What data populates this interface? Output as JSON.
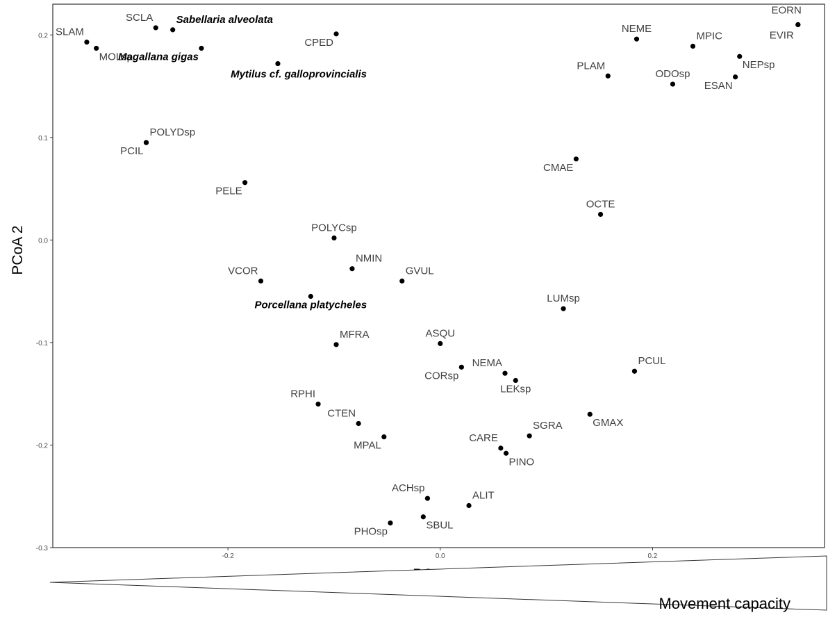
{
  "chart_data": {
    "type": "scatter",
    "xlabel": "PCoA 1",
    "ylabel": "PCoA 2",
    "xlim": [
      -0.365,
      0.362
    ],
    "ylim": [
      -0.3,
      0.23
    ],
    "x_ticks": [
      -0.2,
      0.0,
      0.2
    ],
    "x_tick_labels": [
      "-0.2",
      "0.0",
      "0.2"
    ],
    "y_ticks": [
      -0.3,
      -0.2,
      -0.1,
      0.0,
      0.1,
      0.2
    ],
    "y_tick_labels": [
      "-0.3",
      "-0.2",
      "-0.1",
      "0.0",
      "0.1",
      "0.2"
    ],
    "grid": false,
    "annotation": "Movement capacity",
    "points": [
      {
        "label": "SLAM",
        "x": -0.333,
        "y": 0.193,
        "anchor": "end",
        "pos": "above-left",
        "bold": false
      },
      {
        "label": "MOLsp",
        "x": -0.324,
        "y": 0.187,
        "anchor": "start",
        "pos": "below-right",
        "bold": false
      },
      {
        "label": "SCLA",
        "x": -0.268,
        "y": 0.207,
        "anchor": "end",
        "pos": "above-left",
        "bold": false
      },
      {
        "label": "Sabellaria alveolata",
        "x": -0.252,
        "y": 0.205,
        "anchor": "start",
        "pos": "above-right",
        "bold": true
      },
      {
        "label": "Magallana gigas",
        "x": -0.225,
        "y": 0.187,
        "anchor": "end",
        "pos": "below-left",
        "bold": true
      },
      {
        "label": "Mytilus cf. galloprovincialis",
        "x": -0.153,
        "y": 0.172,
        "anchor": "end",
        "pos": "below-right-bold",
        "bold": true
      },
      {
        "label": "CPED",
        "x": -0.098,
        "y": 0.201,
        "anchor": "end",
        "pos": "below-left",
        "bold": false
      },
      {
        "label": "POLYDsp",
        "x": -0.277,
        "y": 0.095,
        "anchor": "start",
        "pos": "above-right",
        "bold": false
      },
      {
        "label": "PCIL",
        "x": -0.277,
        "y": 0.095,
        "anchor": "end",
        "pos": "below-left",
        "bold": false
      },
      {
        "label": "PELE",
        "x": -0.184,
        "y": 0.056,
        "anchor": "end",
        "pos": "below-left",
        "bold": false
      },
      {
        "label": "POLYCsp",
        "x": -0.1,
        "y": 0.002,
        "anchor": "middle",
        "pos": "above",
        "bold": false
      },
      {
        "label": "NMIN",
        "x": -0.083,
        "y": -0.028,
        "anchor": "start",
        "pos": "above-right",
        "bold": false
      },
      {
        "label": "GVUL",
        "x": -0.036,
        "y": -0.04,
        "anchor": "start",
        "pos": "above-right",
        "bold": false
      },
      {
        "label": "VCOR",
        "x": -0.169,
        "y": -0.04,
        "anchor": "end",
        "pos": "above-left",
        "bold": false
      },
      {
        "label": "Porcellana platycheles",
        "x": -0.122,
        "y": -0.055,
        "anchor": "middle",
        "pos": "below",
        "bold": true
      },
      {
        "label": "MFRA",
        "x": -0.098,
        "y": -0.102,
        "anchor": "start",
        "pos": "above-right",
        "bold": false
      },
      {
        "label": "ASQU",
        "x": 0.0,
        "y": -0.101,
        "anchor": "middle",
        "pos": "above",
        "bold": false
      },
      {
        "label": "CORsp",
        "x": 0.02,
        "y": -0.124,
        "anchor": "end",
        "pos": "below-left",
        "bold": false
      },
      {
        "label": "NEMA",
        "x": 0.061,
        "y": -0.13,
        "anchor": "end",
        "pos": "above-left",
        "bold": false
      },
      {
        "label": "LEKsp",
        "x": 0.071,
        "y": -0.137,
        "anchor": "middle",
        "pos": "below",
        "bold": false
      },
      {
        "label": "RPHI",
        "x": -0.115,
        "y": -0.16,
        "anchor": "end",
        "pos": "above-left",
        "bold": false
      },
      {
        "label": "CTEN",
        "x": -0.077,
        "y": -0.179,
        "anchor": "end",
        "pos": "above-left",
        "bold": false
      },
      {
        "label": "MPAL",
        "x": -0.053,
        "y": -0.192,
        "anchor": "end",
        "pos": "below-left",
        "bold": false
      },
      {
        "label": "SGRA",
        "x": 0.084,
        "y": -0.191,
        "anchor": "start",
        "pos": "above-right",
        "bold": false
      },
      {
        "label": "CARE",
        "x": 0.057,
        "y": -0.203,
        "anchor": "end",
        "pos": "above-left",
        "bold": false
      },
      {
        "label": "PINO",
        "x": 0.062,
        "y": -0.208,
        "anchor": "start",
        "pos": "below-right",
        "bold": false
      },
      {
        "label": "GMAX",
        "x": 0.141,
        "y": -0.17,
        "anchor": "start",
        "pos": "below-right",
        "bold": false
      },
      {
        "label": "PCUL",
        "x": 0.183,
        "y": -0.128,
        "anchor": "start",
        "pos": "above-right",
        "bold": false
      },
      {
        "label": "LUMsp",
        "x": 0.116,
        "y": -0.067,
        "anchor": "middle",
        "pos": "above",
        "bold": false
      },
      {
        "label": "OCTE",
        "x": 0.151,
        "y": 0.025,
        "anchor": "middle",
        "pos": "above",
        "bold": false
      },
      {
        "label": "CMAE",
        "x": 0.128,
        "y": 0.079,
        "anchor": "end",
        "pos": "below-left",
        "bold": false
      },
      {
        "label": "PLAM",
        "x": 0.158,
        "y": 0.16,
        "anchor": "end",
        "pos": "above-left",
        "bold": false
      },
      {
        "label": "NEME",
        "x": 0.185,
        "y": 0.196,
        "anchor": "middle",
        "pos": "above",
        "bold": false
      },
      {
        "label": "MPIC",
        "x": 0.238,
        "y": 0.189,
        "anchor": "start",
        "pos": "above-right",
        "bold": false
      },
      {
        "label": "ODOsp",
        "x": 0.219,
        "y": 0.152,
        "anchor": "middle",
        "pos": "above",
        "bold": false
      },
      {
        "label": "NEPsp",
        "x": 0.282,
        "y": 0.179,
        "anchor": "start",
        "pos": "below-right",
        "bold": false
      },
      {
        "label": "ESAN",
        "x": 0.278,
        "y": 0.159,
        "anchor": "end",
        "pos": "below-left",
        "bold": false
      },
      {
        "label": "EORN",
        "x": 0.337,
        "y": 0.21,
        "anchor": "end",
        "pos": "above-left-far",
        "bold": false
      },
      {
        "label": "EVIR",
        "x": 0.337,
        "y": 0.21,
        "anchor": "end",
        "pos": "below-left-far",
        "bold": false
      },
      {
        "label": "ACHsp",
        "x": -0.012,
        "y": -0.252,
        "anchor": "end",
        "pos": "above-left",
        "bold": false
      },
      {
        "label": "ALIT",
        "x": 0.027,
        "y": -0.259,
        "anchor": "start",
        "pos": "above-right",
        "bold": false
      },
      {
        "label": "SBUL",
        "x": -0.016,
        "y": -0.27,
        "anchor": "start",
        "pos": "below-right",
        "bold": false
      },
      {
        "label": "PHOsp",
        "x": -0.047,
        "y": -0.276,
        "anchor": "end",
        "pos": "below-left",
        "bold": false
      }
    ]
  }
}
